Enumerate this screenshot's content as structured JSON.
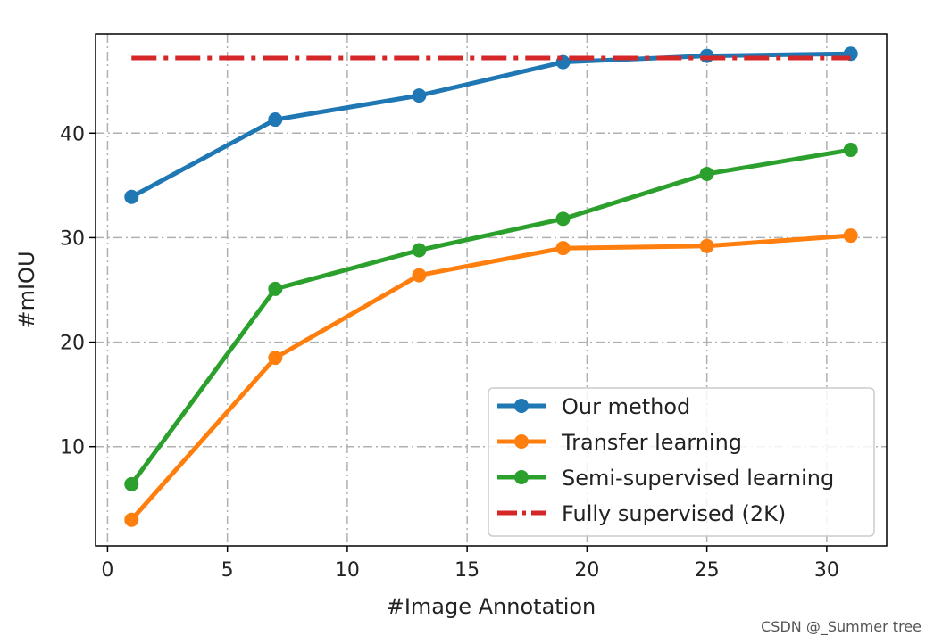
{
  "chart_data": {
    "type": "line",
    "title": "",
    "xlabel": "#Image Annotation",
    "ylabel": "#mIOU",
    "xlim": [
      -0.5,
      32.5
    ],
    "ylim": [
      0.5,
      49.5
    ],
    "xticks": [
      0,
      5,
      10,
      15,
      20,
      25,
      30
    ],
    "yticks": [
      10,
      20,
      30,
      40
    ],
    "grid": true,
    "legend_position": "lower-right",
    "x": [
      1,
      7,
      13,
      19,
      25,
      31
    ],
    "series": [
      {
        "name": "Our method",
        "color": "#1f77b4",
        "style": "solid",
        "marker": "circle",
        "values": [
          33.9,
          41.3,
          43.6,
          46.8,
          47.4,
          47.6
        ]
      },
      {
        "name": "Transfer learning",
        "color": "#ff7f0e",
        "style": "solid",
        "marker": "circle",
        "values": [
          3.0,
          18.5,
          26.4,
          29.0,
          29.2,
          30.2
        ]
      },
      {
        "name": "Semi-supervised learning",
        "color": "#2ca02c",
        "style": "solid",
        "marker": "circle",
        "values": [
          6.4,
          25.1,
          28.8,
          31.8,
          36.1,
          38.4
        ]
      },
      {
        "name": "Fully supervised (2K)",
        "color": "#d62728",
        "style": "dashdot",
        "marker": "none",
        "values": [
          47.2,
          47.2,
          47.2,
          47.2,
          47.2,
          47.2
        ]
      }
    ]
  },
  "watermark": "CSDN @_Summer tree"
}
